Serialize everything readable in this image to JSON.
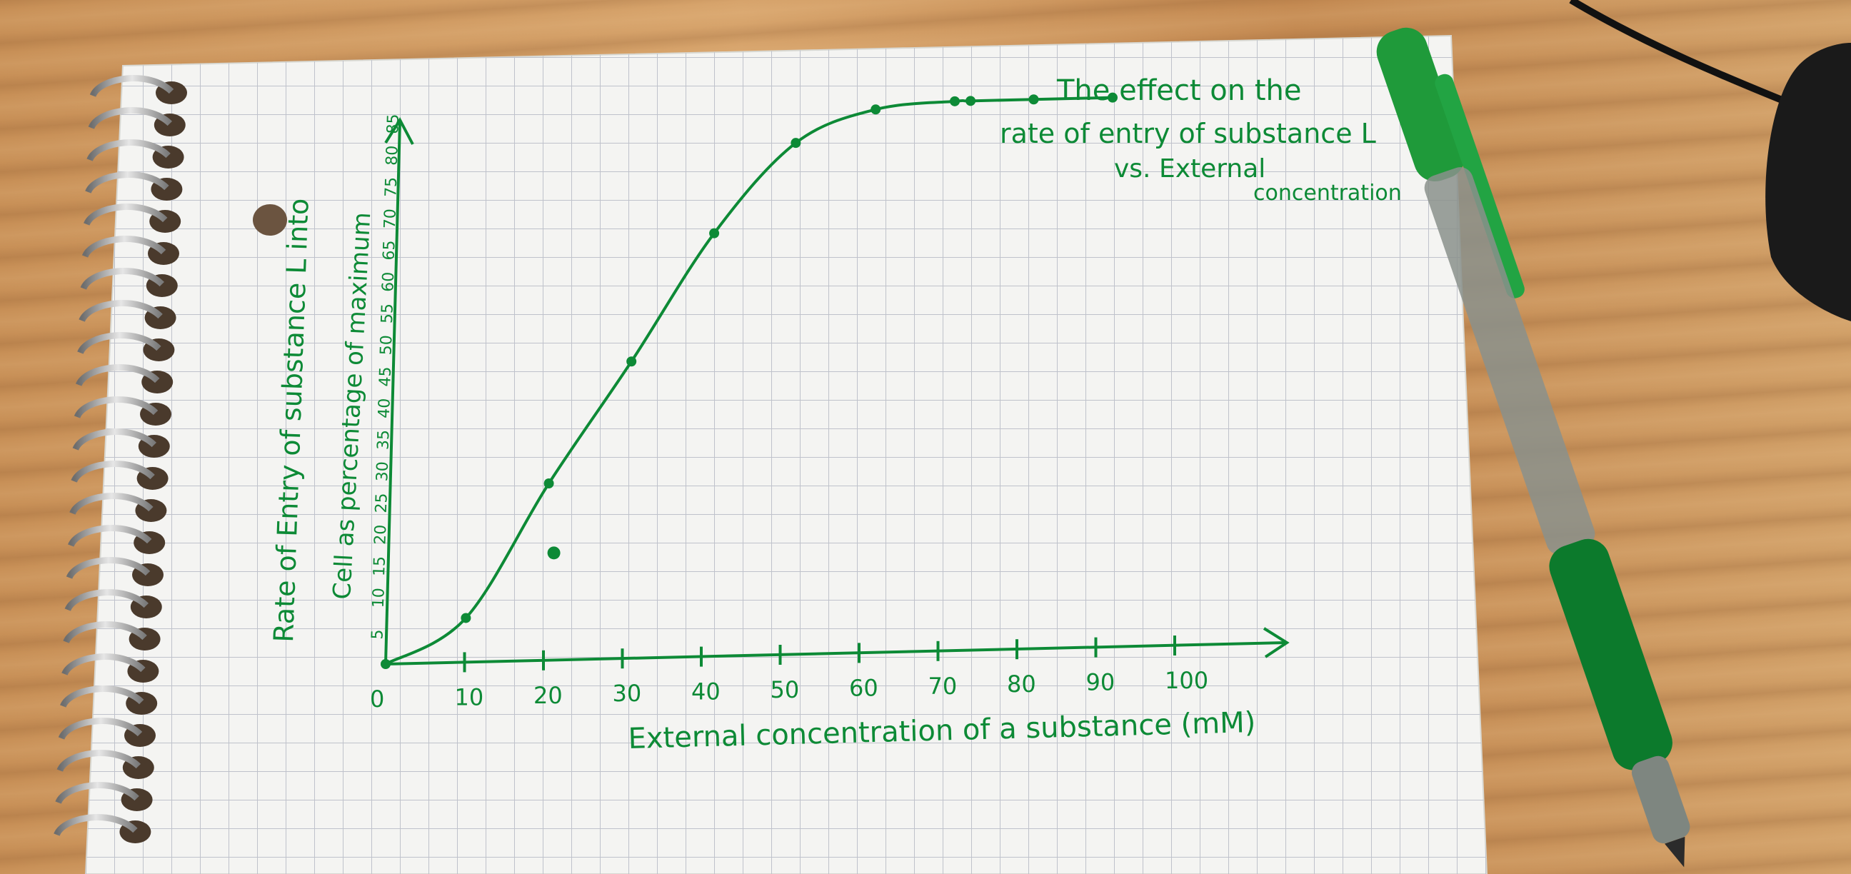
{
  "chart_data": {
    "type": "line",
    "title": "The effect on the rate of entry of substance L vs. External concentration",
    "title_lines": [
      "The effect on the",
      "rate of entry of substance L",
      "vs. External",
      "concentration"
    ],
    "xlabel": "External concentration of a substance (mM)",
    "ylabel_lines": [
      "Rate of Entry of substance L into",
      "Cell as percentage of maximum"
    ],
    "x_ticks": [
      "0",
      "10",
      "20",
      "30",
      "40",
      "50",
      "60",
      "70",
      "80",
      "90",
      "100"
    ],
    "y_ticks": [
      "5",
      "10",
      "15",
      "20",
      "25",
      "30",
      "35",
      "40",
      "45",
      "50",
      "55",
      "60",
      "65",
      "70",
      "75",
      "80",
      "85"
    ],
    "xlim": [
      0,
      110
    ],
    "ylim": [
      0,
      88
    ],
    "series": [
      {
        "x": [
          0,
          10,
          20,
          30,
          40,
          50,
          60,
          70,
          72,
          80,
          90
        ],
        "y": [
          0,
          7,
          28,
          47,
          67,
          81,
          86,
          87,
          87,
          87,
          87
        ]
      }
    ],
    "outlier": {
      "x": 20,
      "y": 17
    },
    "grid": true,
    "colors": {
      "ink": "#0d8a36",
      "paper": "#f3f3f1",
      "grid": "#b9bcc7"
    }
  }
}
